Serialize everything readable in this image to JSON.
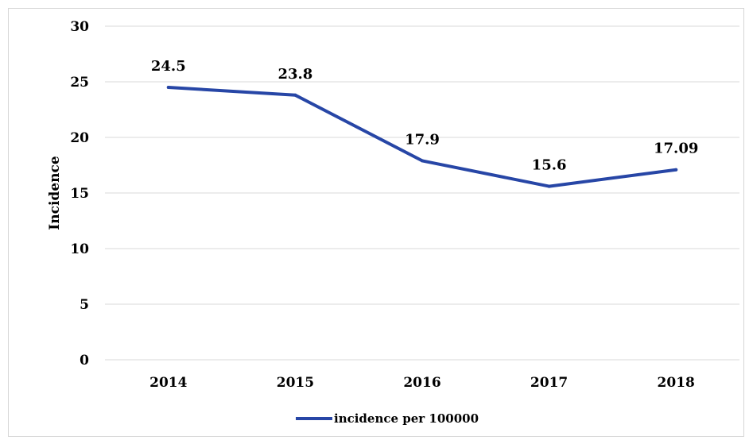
{
  "chart_data": {
    "type": "line",
    "title": "",
    "xlabel": "",
    "ylabel": "Incidence",
    "categories": [
      "2014",
      "2015",
      "2016",
      "2017",
      "2018"
    ],
    "series": [
      {
        "name": "incidence per 100000",
        "values": [
          24.5,
          23.8,
          17.9,
          15.6,
          17.09
        ],
        "labels": [
          "24.5",
          "23.8",
          "17.9",
          "15.6",
          "17.09"
        ],
        "color": "#2746a6"
      }
    ],
    "ylim": [
      0,
      30
    ],
    "yticks": [
      "0",
      "5",
      "10",
      "15",
      "20",
      "25",
      "30"
    ],
    "grid": true,
    "legend_position": "bottom"
  }
}
